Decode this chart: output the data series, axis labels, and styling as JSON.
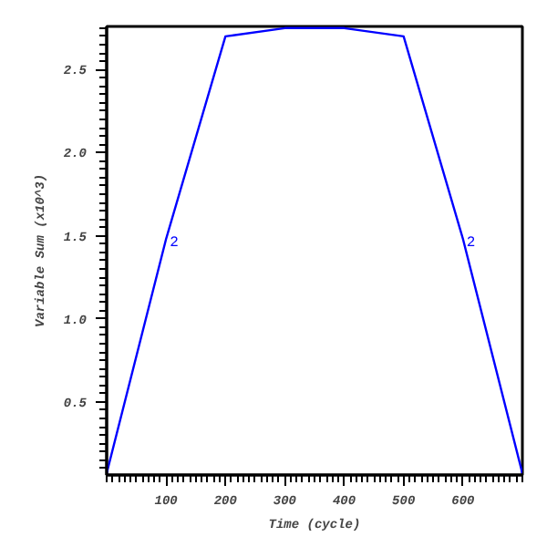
{
  "chart_data": {
    "type": "line",
    "xlabel": "Time (cycle)",
    "ylabel": "Variable Sum (x10^3)",
    "x": [
      0,
      100,
      200,
      300,
      400,
      500,
      600,
      700
    ],
    "series": [
      {
        "color": "#0000ff",
        "values": [
          0.07,
          1.48,
          2.7,
          2.75,
          2.75,
          2.7,
          1.48,
          0.07
        ]
      }
    ],
    "annotations": [
      {
        "text": "2",
        "x": 100,
        "y": 1.48
      },
      {
        "text": "2",
        "x": 600,
        "y": 1.48
      }
    ],
    "xlim": [
      0,
      700
    ],
    "ylim": [
      0.06,
      2.76
    ],
    "xticks": [
      100,
      200,
      300,
      400,
      500,
      600
    ],
    "yticks": [
      0.5,
      {
        "value": 1,
        "label": "1.0"
      },
      1.5,
      {
        "value": 2,
        "label": "2.0"
      },
      2.5
    ],
    "grid": false,
    "marker": "none",
    "line_style": "solid"
  }
}
